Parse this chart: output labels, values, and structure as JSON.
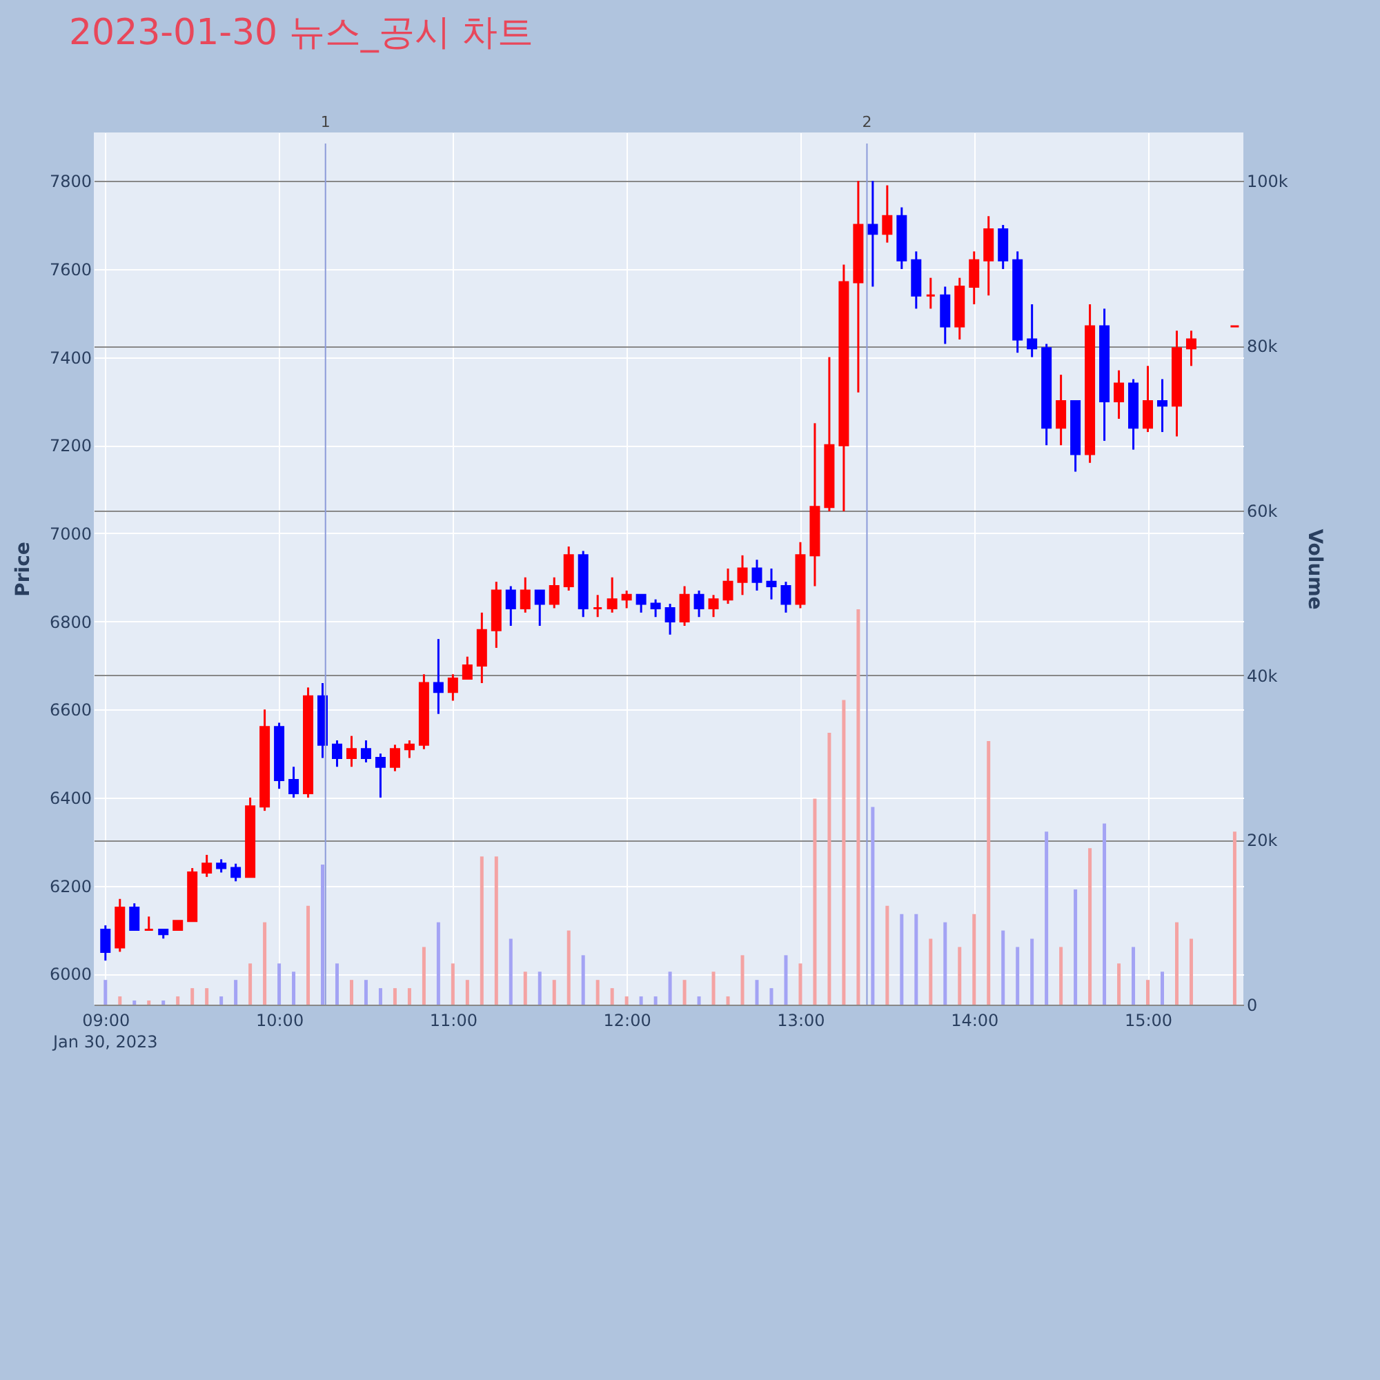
{
  "chart_data": {
    "type": "candlestick",
    "title": "2023-01-30 뉴스_공시 차트",
    "ylabel": "Price",
    "y2label": "Volume",
    "x": [
      "2023-01-30T09:00",
      "2023-01-30T09:05",
      "2023-01-30T09:10",
      "2023-01-30T09:15",
      "2023-01-30T09:20",
      "2023-01-30T09:25",
      "2023-01-30T09:30",
      "2023-01-30T09:35",
      "2023-01-30T09:40",
      "2023-01-30T09:45",
      "2023-01-30T09:50",
      "2023-01-30T09:55",
      "2023-01-30T10:00",
      "2023-01-30T10:05",
      "2023-01-30T10:10",
      "2023-01-30T10:15",
      "2023-01-30T10:20",
      "2023-01-30T10:25",
      "2023-01-30T10:30",
      "2023-01-30T10:35",
      "2023-01-30T10:40",
      "2023-01-30T10:45",
      "2023-01-30T10:50",
      "2023-01-30T10:55",
      "2023-01-30T11:00",
      "2023-01-30T11:05",
      "2023-01-30T11:10",
      "2023-01-30T11:15",
      "2023-01-30T11:20",
      "2023-01-30T11:25",
      "2023-01-30T11:30",
      "2023-01-30T11:35",
      "2023-01-30T11:40",
      "2023-01-30T11:45",
      "2023-01-30T11:50",
      "2023-01-30T11:55",
      "2023-01-30T12:00",
      "2023-01-30T12:05",
      "2023-01-30T12:10",
      "2023-01-30T12:15",
      "2023-01-30T12:20",
      "2023-01-30T12:25",
      "2023-01-30T12:30",
      "2023-01-30T12:35",
      "2023-01-30T12:40",
      "2023-01-30T12:45",
      "2023-01-30T12:50",
      "2023-01-30T12:55",
      "2023-01-30T13:00",
      "2023-01-30T13:05",
      "2023-01-30T13:10",
      "2023-01-30T13:15",
      "2023-01-30T13:20",
      "2023-01-30T13:25",
      "2023-01-30T13:30",
      "2023-01-30T13:35",
      "2023-01-30T13:40",
      "2023-01-30T13:45",
      "2023-01-30T13:50",
      "2023-01-30T13:55",
      "2023-01-30T14:00",
      "2023-01-30T14:05",
      "2023-01-30T14:10",
      "2023-01-30T14:15",
      "2023-01-30T14:20",
      "2023-01-30T14:25",
      "2023-01-30T14:30",
      "2023-01-30T14:35",
      "2023-01-30T14:40",
      "2023-01-30T14:45",
      "2023-01-30T14:50",
      "2023-01-30T14:55",
      "2023-01-30T15:00",
      "2023-01-30T15:05",
      "2023-01-30T15:10",
      "2023-01-30T15:15",
      "2023-01-30T15:30"
    ],
    "xlim": [
      "2023-01-30T08:56",
      "2023-01-30T15:33"
    ],
    "xticks": [
      {
        "value": "2023-01-30T09:00",
        "label": "09:00"
      },
      {
        "value": "2023-01-30T10:00",
        "label": "10:00"
      },
      {
        "value": "2023-01-30T11:00",
        "label": "11:00"
      },
      {
        "value": "2023-01-30T12:00",
        "label": "12:00"
      },
      {
        "value": "2023-01-30T13:00",
        "label": "13:00"
      },
      {
        "value": "2023-01-30T14:00",
        "label": "14:00"
      },
      {
        "value": "2023-01-30T15:00",
        "label": "15:00"
      }
    ],
    "ylim": [
      5930,
      7910
    ],
    "yticks": [
      6000,
      6200,
      6400,
      6600,
      6800,
      7000,
      7200,
      7400,
      7600,
      7800
    ],
    "y2lim": [
      0,
      105900
    ],
    "y2ticks": [
      0,
      {
        "value": 20000,
        "label": "20k"
      },
      {
        "value": 40000,
        "label": "40k"
      },
      {
        "value": 60000,
        "label": "60k"
      },
      {
        "value": 80000,
        "label": "80k"
      },
      {
        "value": 100000,
        "label": "100k"
      }
    ],
    "grid": true,
    "series": [
      {
        "type": "candlestick",
        "ohlc": [
          [
            6100,
            6110,
            6030,
            6050
          ],
          [
            6060,
            6170,
            6050,
            6150
          ],
          [
            6150,
            6160,
            6100,
            6100
          ],
          [
            6100,
            6130,
            6100,
            6100
          ],
          [
            6100,
            6100,
            6080,
            6090
          ],
          [
            6100,
            6120,
            6100,
            6120
          ],
          [
            6120,
            6240,
            6120,
            6230
          ],
          [
            6230,
            6270,
            6220,
            6250
          ],
          [
            6250,
            6260,
            6230,
            6240
          ],
          [
            6240,
            6250,
            6210,
            6220
          ],
          [
            6220,
            6400,
            6220,
            6380
          ],
          [
            6380,
            6600,
            6370,
            6560
          ],
          [
            6560,
            6570,
            6420,
            6440
          ],
          [
            6440,
            6470,
            6400,
            6410
          ],
          [
            6410,
            6650,
            6400,
            6630
          ],
          [
            6630,
            6660,
            6490,
            6520
          ],
          [
            6520,
            6530,
            6470,
            6490
          ],
          [
            6490,
            6540,
            6470,
            6510
          ],
          [
            6510,
            6530,
            6480,
            6490
          ],
          [
            6490,
            6500,
            6400,
            6470
          ],
          [
            6470,
            6520,
            6460,
            6510
          ],
          [
            6510,
            6530,
            6490,
            6520
          ],
          [
            6520,
            6680,
            6510,
            6660
          ],
          [
            6660,
            6760,
            6590,
            6640
          ],
          [
            6640,
            6680,
            6620,
            6670
          ],
          [
            6670,
            6720,
            6670,
            6700
          ],
          [
            6700,
            6820,
            6660,
            6780
          ],
          [
            6780,
            6890,
            6740,
            6870
          ],
          [
            6870,
            6880,
            6790,
            6830
          ],
          [
            6830,
            6900,
            6820,
            6870
          ],
          [
            6870,
            6870,
            6790,
            6840
          ],
          [
            6840,
            6900,
            6830,
            6880
          ],
          [
            6880,
            6970,
            6870,
            6950
          ],
          [
            6950,
            6960,
            6810,
            6830
          ],
          [
            6830,
            6860,
            6810,
            6830
          ],
          [
            6830,
            6900,
            6820,
            6850
          ],
          [
            6850,
            6870,
            6830,
            6860
          ],
          [
            6860,
            6860,
            6820,
            6840
          ],
          [
            6840,
            6850,
            6810,
            6830
          ],
          [
            6830,
            6840,
            6770,
            6800
          ],
          [
            6800,
            6880,
            6790,
            6860
          ],
          [
            6860,
            6870,
            6810,
            6830
          ],
          [
            6830,
            6860,
            6810,
            6850
          ],
          [
            6850,
            6920,
            6840,
            6890
          ],
          [
            6890,
            6950,
            6860,
            6920
          ],
          [
            6920,
            6940,
            6870,
            6890
          ],
          [
            6890,
            6920,
            6850,
            6880
          ],
          [
            6880,
            6890,
            6820,
            6840
          ],
          [
            6840,
            6980,
            6830,
            6950
          ],
          [
            6950,
            7250,
            6880,
            7060
          ],
          [
            7060,
            7400,
            7050,
            7200
          ],
          [
            7200,
            7610,
            7050,
            7570
          ],
          [
            7570,
            7800,
            7320,
            7700
          ],
          [
            7700,
            7800,
            7560,
            7680
          ],
          [
            7680,
            7790,
            7660,
            7720
          ],
          [
            7720,
            7740,
            7600,
            7620
          ],
          [
            7620,
            7640,
            7510,
            7540
          ],
          [
            7540,
            7580,
            7510,
            7540
          ],
          [
            7540,
            7560,
            7430,
            7470
          ],
          [
            7470,
            7580,
            7440,
            7560
          ],
          [
            7560,
            7640,
            7520,
            7620
          ],
          [
            7620,
            7720,
            7540,
            7690
          ],
          [
            7690,
            7700,
            7600,
            7620
          ],
          [
            7620,
            7640,
            7410,
            7440
          ],
          [
            7440,
            7520,
            7400,
            7420
          ],
          [
            7420,
            7430,
            7200,
            7240
          ],
          [
            7240,
            7360,
            7200,
            7300
          ],
          [
            7300,
            7300,
            7140,
            7180
          ],
          [
            7180,
            7520,
            7160,
            7470
          ],
          [
            7470,
            7510,
            7210,
            7300
          ],
          [
            7300,
            7370,
            7260,
            7340
          ],
          [
            7340,
            7350,
            7190,
            7240
          ],
          [
            7240,
            7380,
            7230,
            7300
          ],
          [
            7300,
            7350,
            7230,
            7290
          ],
          [
            7290,
            7460,
            7220,
            7420
          ],
          [
            7420,
            7460,
            7380,
            7440
          ],
          [
            7470,
            7470,
            7470,
            7470
          ]
        ],
        "colors": [
          "#0000ff",
          "#ff0000",
          "#0000ff",
          "#ff0000",
          "#0000ff",
          "#ff0000",
          "#ff0000",
          "#ff0000",
          "#0000ff",
          "#0000ff",
          "#ff0000",
          "#ff0000",
          "#0000ff",
          "#0000ff",
          "#ff0000",
          "#0000ff",
          "#0000ff",
          "#ff0000",
          "#0000ff",
          "#0000ff",
          "#ff0000",
          "#ff0000",
          "#ff0000",
          "#0000ff",
          "#ff0000",
          "#ff0000",
          "#ff0000",
          "#ff0000",
          "#0000ff",
          "#ff0000",
          "#0000ff",
          "#ff0000",
          "#ff0000",
          "#0000ff",
          "#ff0000",
          "#ff0000",
          "#ff0000",
          "#0000ff",
          "#0000ff",
          "#0000ff",
          "#ff0000",
          "#0000ff",
          "#ff0000",
          "#ff0000",
          "#ff0000",
          "#0000ff",
          "#0000ff",
          "#0000ff",
          "#ff0000",
          "#ff0000",
          "#ff0000",
          "#ff0000",
          "#ff0000",
          "#0000ff",
          "#ff0000",
          "#0000ff",
          "#0000ff",
          "#ff0000",
          "#0000ff",
          "#ff0000",
          "#ff0000",
          "#ff0000",
          "#0000ff",
          "#0000ff",
          "#0000ff",
          "#0000ff",
          "#ff0000",
          "#0000ff",
          "#ff0000",
          "#0000ff",
          "#ff0000",
          "#0000ff",
          "#ff0000",
          "#0000ff",
          "#ff0000",
          "#ff0000",
          "#ff0000"
        ]
      },
      {
        "type": "bar",
        "axis": "y2",
        "values": [
          3000,
          1000,
          500,
          500,
          500,
          1000,
          2000,
          2000,
          1000,
          3000,
          5000,
          10000,
          5000,
          4000,
          12000,
          17000,
          5000,
          3000,
          3000,
          2000,
          2000,
          2000,
          7000,
          10000,
          5000,
          3000,
          18000,
          18000,
          8000,
          4000,
          4000,
          3000,
          9000,
          6000,
          3000,
          2000,
          1000,
          1000,
          1000,
          4000,
          3000,
          1000,
          4000,
          1000,
          6000,
          3000,
          2000,
          6000,
          5000,
          25000,
          33000,
          37000,
          48000,
          24000,
          12000,
          11000,
          11000,
          8000,
          10000,
          7000,
          11000,
          32000,
          9000,
          7000,
          8000,
          21000,
          7000,
          14000,
          19000,
          22000,
          5000,
          7000,
          3000,
          4000,
          10000,
          8000,
          21000
        ],
        "colors": [
          "#a3a3f4",
          "#f4a3a3",
          "#a3a3f4",
          "#f4a3a3",
          "#a3a3f4",
          "#f4a3a3",
          "#f4a3a3",
          "#f4a3a3",
          "#a3a3f4",
          "#a3a3f4",
          "#f4a3a3",
          "#f4a3a3",
          "#a3a3f4",
          "#a3a3f4",
          "#f4a3a3",
          "#a3a3f4",
          "#a3a3f4",
          "#f4a3a3",
          "#a3a3f4",
          "#a3a3f4",
          "#f4a3a3",
          "#f4a3a3",
          "#f4a3a3",
          "#a3a3f4",
          "#f4a3a3",
          "#f4a3a3",
          "#f4a3a3",
          "#f4a3a3",
          "#a3a3f4",
          "#f4a3a3",
          "#a3a3f4",
          "#f4a3a3",
          "#f4a3a3",
          "#a3a3f4",
          "#f4a3a3",
          "#f4a3a3",
          "#f4a3a3",
          "#a3a3f4",
          "#a3a3f4",
          "#a3a3f4",
          "#f4a3a3",
          "#a3a3f4",
          "#f4a3a3",
          "#f4a3a3",
          "#f4a3a3",
          "#a3a3f4",
          "#a3a3f4",
          "#a3a3f4",
          "#f4a3a3",
          "#f4a3a3",
          "#f4a3a3",
          "#f4a3a3",
          "#f4a3a3",
          "#a3a3f4",
          "#f4a3a3",
          "#a3a3f4",
          "#a3a3f4",
          "#f4a3a3",
          "#a3a3f4",
          "#f4a3a3",
          "#f4a3a3",
          "#f4a3a3",
          "#a3a3f4",
          "#a3a3f4",
          "#a3a3f4",
          "#a3a3f4",
          "#f4a3a3",
          "#a3a3f4",
          "#f4a3a3",
          "#a3a3f4",
          "#f4a3a3",
          "#a3a3f4",
          "#f4a3a3",
          "#a3a3f4",
          "#f4a3a3",
          "#f4a3a3",
          "#f4a3a3"
        ]
      }
    ],
    "ref_lines": [
      {
        "axis": "x",
        "value": "2023-01-30T10:16",
        "label": "1",
        "color": "#8c9bd9"
      },
      {
        "axis": "x",
        "value": "2023-01-30T13:23",
        "label": "2",
        "color": "#8c9bd9"
      }
    ],
    "annotations": [
      "Jan 30, 2023"
    ]
  }
}
